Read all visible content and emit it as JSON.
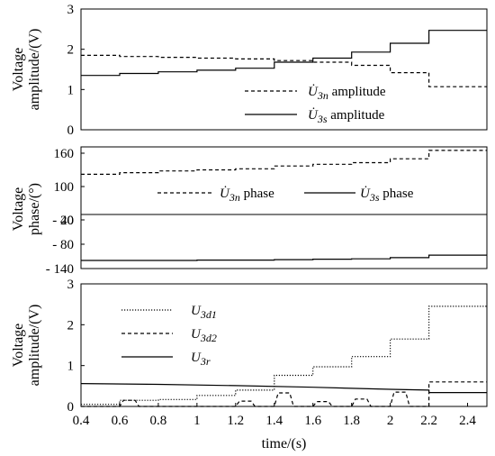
{
  "chart_data": [
    {
      "type": "line",
      "ylabel": "Voltage amplitude/(V)",
      "ylim": [
        0,
        3
      ],
      "yticks": [
        0,
        1,
        2,
        3
      ],
      "xlim": [
        0.4,
        2.5
      ],
      "grid": false,
      "legend_position": "bottom-right",
      "series": [
        {
          "name": "U̇3n amplitude",
          "symbol": "U̇",
          "subscript": "3n",
          "suffix": "amplitude",
          "style": "dashed",
          "x": [
            0.4,
            0.6,
            0.6,
            0.8,
            0.8,
            1.0,
            1.0,
            1.2,
            1.2,
            1.4,
            1.4,
            1.6,
            1.6,
            1.8,
            1.8,
            2.0,
            2.0,
            2.2,
            2.2,
            2.5
          ],
          "y": [
            1.85,
            1.85,
            1.82,
            1.82,
            1.8,
            1.8,
            1.78,
            1.78,
            1.76,
            1.76,
            1.72,
            1.72,
            1.68,
            1.68,
            1.6,
            1.6,
            1.42,
            1.42,
            1.07,
            1.07
          ]
        },
        {
          "name": "U̇3s amplitude",
          "symbol": "U̇",
          "subscript": "3s",
          "suffix": "amplitude",
          "style": "solid",
          "x": [
            0.4,
            0.6,
            0.6,
            0.8,
            0.8,
            1.0,
            1.0,
            1.2,
            1.2,
            1.4,
            1.4,
            1.6,
            1.6,
            1.8,
            1.8,
            2.0,
            2.0,
            2.2,
            2.2,
            2.5
          ],
          "y": [
            1.35,
            1.35,
            1.4,
            1.4,
            1.44,
            1.44,
            1.48,
            1.48,
            1.53,
            1.53,
            1.68,
            1.68,
            1.78,
            1.78,
            1.93,
            1.93,
            2.15,
            2.15,
            2.47,
            2.47
          ]
        }
      ]
    },
    {
      "type": "line",
      "ylabel": "Voltage phase/(°)",
      "yticks": [
        160,
        100,
        40,
        -20,
        -80,
        -140
      ],
      "xlim": [
        0.4,
        2.5
      ],
      "grid": false,
      "legend_position": "center",
      "series": [
        {
          "name": "U̇3n phase",
          "symbol": "U̇",
          "subscript": "3n",
          "suffix": "phase",
          "style": "dashed",
          "x": [
            0.4,
            0.6,
            0.6,
            0.8,
            0.8,
            1.0,
            1.0,
            1.2,
            1.2,
            1.4,
            1.4,
            1.6,
            1.6,
            1.8,
            1.8,
            2.0,
            2.0,
            2.2,
            2.2,
            2.5
          ],
          "y": [
            122,
            122,
            125,
            125,
            128,
            128,
            130,
            130,
            132,
            132,
            137,
            137,
            140,
            140,
            143,
            143,
            150,
            150,
            165,
            165
          ]
        },
        {
          "name": "U̇3s phase",
          "symbol": "U̇",
          "subscript": "3s",
          "suffix": "phase",
          "style": "solid",
          "x": [
            0.4,
            0.6,
            0.6,
            0.8,
            0.8,
            1.0,
            1.0,
            1.2,
            1.2,
            1.4,
            1.4,
            1.6,
            1.6,
            1.8,
            1.8,
            2.0,
            2.0,
            2.2,
            2.2,
            2.5
          ],
          "y": [
            -120,
            -120,
            -120,
            -120,
            -120,
            -120,
            -119,
            -119,
            -119,
            -119,
            -118,
            -118,
            -117,
            -117,
            -116,
            -116,
            -113,
            -113,
            -107,
            -107
          ]
        }
      ]
    },
    {
      "type": "line",
      "ylabel": "Voltage amplitude/(V)",
      "xlabel": "time/(s)",
      "ylim": [
        0,
        3
      ],
      "yticks": [
        0,
        1,
        2,
        3
      ],
      "xlim": [
        0.4,
        2.5
      ],
      "xticks": [
        "0.4",
        "0.6",
        "0.8",
        "1",
        "1.2",
        "1.4",
        "1.6",
        "1.8",
        "2",
        "2.2",
        "2.4"
      ],
      "grid": false,
      "legend_position": "top-left",
      "series": [
        {
          "name": "U3d1",
          "symbol": "U",
          "subscript": "3d1",
          "style": "dotted",
          "x": [
            0.4,
            0.6,
            0.6,
            0.8,
            0.8,
            1.0,
            1.0,
            1.2,
            1.2,
            1.4,
            1.4,
            1.6,
            1.6,
            1.8,
            1.8,
            2.0,
            2.0,
            2.2,
            2.2,
            2.5
          ],
          "y": [
            0.05,
            0.05,
            0.15,
            0.15,
            0.17,
            0.17,
            0.27,
            0.27,
            0.4,
            0.4,
            0.76,
            0.76,
            0.97,
            0.97,
            1.22,
            1.22,
            1.65,
            1.65,
            2.45,
            2.45
          ]
        },
        {
          "name": "U3d2",
          "symbol": "U",
          "subscript": "3d2",
          "style": "dashed",
          "x": [
            0.4,
            0.6,
            0.6,
            0.62,
            0.68,
            0.7,
            0.7,
            0.8,
            0.8,
            1.0,
            1.0,
            1.2,
            1.2,
            1.22,
            1.28,
            1.3,
            1.3,
            1.4,
            1.4,
            1.42,
            1.48,
            1.5,
            1.5,
            1.6,
            1.6,
            1.62,
            1.68,
            1.7,
            1.7,
            1.8,
            1.8,
            1.82,
            1.88,
            1.9,
            1.9,
            2.0,
            2.0,
            2.02,
            2.08,
            2.1,
            2.1,
            2.2,
            2.2,
            2.5
          ],
          "y": [
            0.0,
            0.0,
            0.0,
            0.15,
            0.15,
            0.0,
            0.0,
            0.0,
            0.0,
            0.0,
            0.0,
            0.0,
            0.0,
            0.13,
            0.13,
            0.0,
            0.0,
            0.0,
            0.0,
            0.33,
            0.33,
            0.0,
            0.0,
            0.0,
            0.0,
            0.12,
            0.12,
            0.0,
            0.0,
            0.0,
            0.0,
            0.18,
            0.18,
            0.0,
            0.0,
            0.0,
            0.0,
            0.35,
            0.35,
            0.0,
            0.0,
            0.0,
            0.6,
            0.6
          ]
        },
        {
          "name": "U3r",
          "symbol": "U",
          "subscript": "3r",
          "style": "solid",
          "x": [
            0.4,
            0.8,
            1.2,
            1.6,
            2.0,
            2.2,
            2.2,
            2.5
          ],
          "y": [
            0.56,
            0.54,
            0.51,
            0.47,
            0.42,
            0.4,
            0.34,
            0.34
          ]
        }
      ]
    }
  ]
}
